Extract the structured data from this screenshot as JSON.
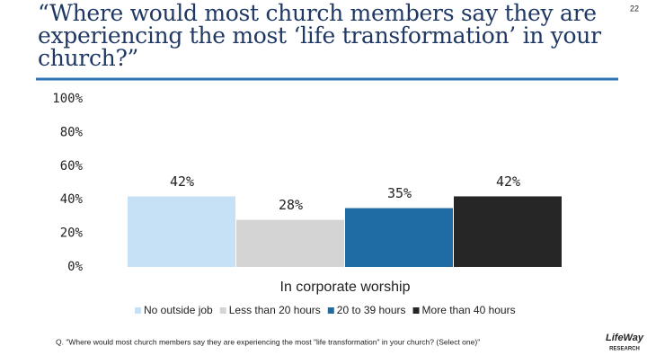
{
  "page_number": "22",
  "logo": {
    "name": "LifeWay",
    "sub": "RESEARCH"
  },
  "chart_data": {
    "type": "bar",
    "title": "“Where would most church members say they are experiencing the most ‘life transformation’ in your church?”",
    "categories": [
      "In corporate worship"
    ],
    "series": [
      {
        "name": "No outside job",
        "color": "#c6e1f5",
        "values": [
          42
        ],
        "value_labels": [
          "42%"
        ]
      },
      {
        "name": "Less than 20 hours",
        "color": "#d4d4d4",
        "values": [
          28
        ],
        "value_labels": [
          "28%"
        ]
      },
      {
        "name": "20 to 39 hours",
        "color": "#1f6ca4",
        "values": [
          35
        ],
        "value_labels": [
          "35%"
        ]
      },
      {
        "name": "More than 40 hours",
        "color": "#262626",
        "values": [
          42
        ],
        "value_labels": [
          "42%"
        ]
      }
    ],
    "ylim": [
      0,
      100
    ],
    "yticks": [
      {
        "value": 0,
        "label": "0%"
      },
      {
        "value": 20,
        "label": "20%"
      },
      {
        "value": 40,
        "label": "40%"
      },
      {
        "value": 60,
        "label": "60%"
      },
      {
        "value": 80,
        "label": "80%"
      },
      {
        "value": 100,
        "label": "100%"
      }
    ],
    "grid": false,
    "legend": "bottom",
    "note": "Q. \"Where would most church members say they are experiencing the most \"life transformation\" in your church? (Select one)\""
  }
}
